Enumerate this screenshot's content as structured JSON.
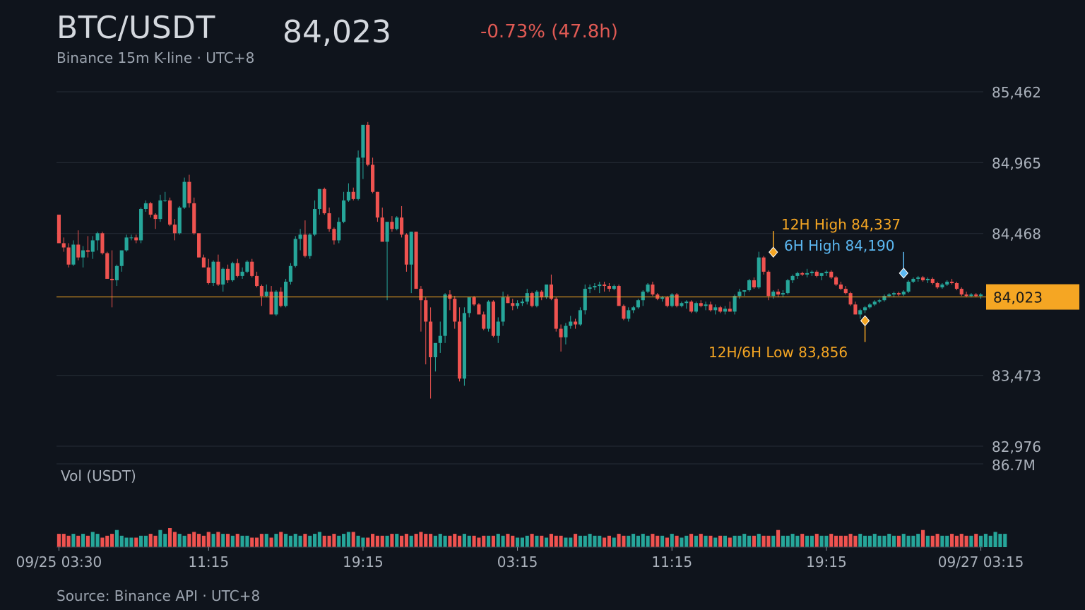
{
  "header": {
    "pair": "BTC/USDT",
    "subtitle": "Binance 15m K-line · UTC+8",
    "price": "84,023",
    "change": "-0.73% (47.8h)"
  },
  "footer": {
    "source": "Source: Binance API · UTC+8"
  },
  "colors": {
    "up": "#26a69a",
    "down": "#ef5350",
    "accent": "#f5a623",
    "six_hour": "#5cb8f2",
    "background": "#0f141c"
  },
  "chart_data": {
    "type": "candlestick",
    "interval": "15m",
    "price_axis": {
      "ticks": [
        "85,462",
        "84,965",
        "84,468",
        "83,473",
        "82,976"
      ],
      "tick_values": [
        85462,
        84965,
        84468,
        83473,
        82976
      ],
      "range": [
        82976,
        85462
      ]
    },
    "last_price": {
      "value": 84023,
      "label": "84,023"
    },
    "volume_axis": {
      "label": "Vol (USDT)",
      "max_label": "86.7M",
      "max": 86.7
    },
    "x_axis": {
      "labels": [
        "09/25 03:30",
        "11:15",
        "19:15",
        "03:15",
        "11:15",
        "19:15",
        "09/27 03:15"
      ],
      "label_bar_index": [
        0,
        31,
        63,
        95,
        127,
        159,
        191
      ]
    },
    "annotations": {
      "high_12h": {
        "text": "12H High 84,337",
        "value": 84337,
        "bar_index": 148
      },
      "high_6h": {
        "text": "6H High 84,190",
        "value": 84190,
        "bar_index": 175
      },
      "low": {
        "text": "12H/6H Low 83,856",
        "value": 83856,
        "bar_index": 167
      }
    },
    "candles_ohlc": [
      [
        84600,
        84600,
        84400,
        84400
      ],
      [
        84400,
        84440,
        84340,
        84370
      ],
      [
        84370,
        84400,
        84230,
        84250
      ],
      [
        84250,
        84420,
        84240,
        84390
      ],
      [
        84390,
        84490,
        84280,
        84300
      ],
      [
        84300,
        84380,
        84230,
        84350
      ],
      [
        84350,
        84450,
        84300,
        84340
      ],
      [
        84340,
        84450,
        84290,
        84420
      ],
      [
        84420,
        84480,
        84350,
        84470
      ],
      [
        84470,
        84480,
        84320,
        84330
      ],
      [
        84330,
        84340,
        84170,
        84150
      ],
      [
        84150,
        84350,
        83950,
        84140
      ],
      [
        84140,
        84250,
        84100,
        84240
      ],
      [
        84240,
        84320,
        84200,
        84350
      ],
      [
        84350,
        84460,
        84340,
        84440
      ],
      [
        84440,
        84460,
        84420,
        84440
      ],
      [
        84440,
        84460,
        84400,
        84420
      ],
      [
        84420,
        84650,
        84400,
        84640
      ],
      [
        84640,
        84700,
        84620,
        84680
      ],
      [
        84680,
        84690,
        84580,
        84600
      ],
      [
        84600,
        84610,
        84500,
        84570
      ],
      [
        84570,
        84740,
        84550,
        84700
      ],
      [
        84700,
        84760,
        84690,
        84700
      ],
      [
        84700,
        84720,
        84520,
        84530
      ],
      [
        84530,
        84570,
        84420,
        84470
      ],
      [
        84470,
        84660,
        84460,
        84650
      ],
      [
        84650,
        84860,
        84640,
        84830
      ],
      [
        84830,
        84880,
        84650,
        84680
      ],
      [
        84680,
        84720,
        84460,
        84470
      ],
      [
        84470,
        84470,
        84300,
        84300
      ],
      [
        84300,
        84320,
        84250,
        84230
      ],
      [
        84230,
        84290,
        84110,
        84120
      ],
      [
        84120,
        84280,
        84100,
        84270
      ],
      [
        84270,
        84320,
        84100,
        84110
      ],
      [
        84110,
        84230,
        84060,
        84220
      ],
      [
        84220,
        84250,
        84120,
        84140
      ],
      [
        84140,
        84270,
        84130,
        84260
      ],
      [
        84260,
        84290,
        84160,
        84170
      ],
      [
        84170,
        84230,
        84150,
        84200
      ],
      [
        84200,
        84280,
        84190,
        84270
      ],
      [
        84270,
        84290,
        84160,
        84170
      ],
      [
        84170,
        84200,
        84090,
        84100
      ],
      [
        84100,
        84110,
        83960,
        84030
      ],
      [
        84030,
        84110,
        84020,
        84060
      ],
      [
        84060,
        84100,
        83900,
        83900
      ],
      [
        83900,
        84070,
        83890,
        84060
      ],
      [
        84060,
        84090,
        83950,
        83960
      ],
      [
        83960,
        84150,
        83950,
        84130
      ],
      [
        84130,
        84260,
        84110,
        84240
      ],
      [
        84240,
        84450,
        84230,
        84430
      ],
      [
        84430,
        84500,
        84350,
        84460
      ],
      [
        84460,
        84560,
        84300,
        84310
      ],
      [
        84310,
        84470,
        84290,
        84460
      ],
      [
        84460,
        84700,
        84450,
        84640
      ],
      [
        84640,
        84780,
        84600,
        84780
      ],
      [
        84780,
        84790,
        84600,
        84610
      ],
      [
        84610,
        84650,
        84480,
        84500
      ],
      [
        84500,
        84510,
        84390,
        84420
      ],
      [
        84420,
        84580,
        84400,
        84550
      ],
      [
        84550,
        84760,
        84540,
        84700
      ],
      [
        84700,
        84820,
        84690,
        84760
      ],
      [
        84760,
        84790,
        84700,
        84710
      ],
      [
        84710,
        85050,
        84700,
        85000
      ],
      [
        85000,
        85220,
        84850,
        85230
      ],
      [
        85230,
        85250,
        84940,
        84950
      ],
      [
        84950,
        85000,
        84750,
        84760
      ],
      [
        84760,
        84760,
        84550,
        84580
      ],
      [
        84580,
        84650,
        84420,
        84410
      ],
      [
        84410,
        84500,
        84000,
        84550
      ],
      [
        84550,
        84590,
        84480,
        84500
      ],
      [
        84500,
        84590,
        84490,
        84580
      ],
      [
        84580,
        84660,
        84440,
        84460
      ],
      [
        84460,
        84470,
        84200,
        84250
      ],
      [
        84250,
        84480,
        84050,
        84480
      ],
      [
        84480,
        84480,
        84080,
        84080
      ],
      [
        84080,
        84100,
        83780,
        84000
      ],
      [
        84000,
        84020,
        83550,
        83850
      ],
      [
        83850,
        83950,
        83310,
        83600
      ],
      [
        83600,
        83660,
        83500,
        83700
      ],
      [
        83700,
        83850,
        83630,
        83750
      ],
      [
        83750,
        84050,
        83700,
        84040
      ],
      [
        84040,
        84070,
        83930,
        84010
      ],
      [
        84010,
        84030,
        83800,
        83850
      ],
      [
        83850,
        83950,
        83430,
        83450
      ],
      [
        83450,
        83950,
        83400,
        83910
      ],
      [
        83910,
        84010,
        83880,
        84020
      ],
      [
        84020,
        84030,
        83960,
        83970
      ],
      [
        83970,
        83980,
        83900,
        83900
      ],
      [
        83900,
        83920,
        83790,
        83800
      ],
      [
        83800,
        84000,
        83780,
        83990
      ],
      [
        83990,
        84000,
        83740,
        83750
      ],
      [
        83750,
        83880,
        83700,
        83850
      ],
      [
        83850,
        84060,
        83820,
        84020
      ],
      [
        84020,
        84040,
        83980,
        83980
      ],
      [
        83980,
        84010,
        83930,
        83960
      ],
      [
        83960,
        84000,
        83940,
        83980
      ],
      [
        83980,
        84010,
        83960,
        83990
      ],
      [
        83990,
        84080,
        83970,
        84050
      ],
      [
        84050,
        84060,
        83950,
        83960
      ],
      [
        83960,
        84070,
        83950,
        84060
      ],
      [
        84060,
        84070,
        84000,
        84020
      ],
      [
        84020,
        84110,
        84010,
        84110
      ],
      [
        84110,
        84180,
        84000,
        84010
      ],
      [
        84010,
        84020,
        83780,
        83800
      ],
      [
        83800,
        83830,
        83640,
        83740
      ],
      [
        83740,
        83840,
        83690,
        83820
      ],
      [
        83820,
        83890,
        83800,
        83850
      ],
      [
        83850,
        83870,
        83800,
        83830
      ],
      [
        83830,
        83950,
        83820,
        83930
      ],
      [
        83930,
        84110,
        83900,
        84080
      ],
      [
        84080,
        84110,
        84050,
        84090
      ],
      [
        84090,
        84120,
        84070,
        84100
      ],
      [
        84100,
        84130,
        84050,
        84110
      ],
      [
        84110,
        84130,
        84060,
        84100
      ],
      [
        84100,
        84120,
        84060,
        84080
      ],
      [
        84080,
        84110,
        84070,
        84100
      ],
      [
        84100,
        84110,
        83960,
        83960
      ],
      [
        83960,
        83970,
        83860,
        83870
      ],
      [
        83870,
        83950,
        83850,
        83930
      ],
      [
        83930,
        83960,
        83910,
        83950
      ],
      [
        83950,
        84010,
        83940,
        84000
      ],
      [
        84000,
        84070,
        83960,
        84060
      ],
      [
        84060,
        84120,
        84050,
        84110
      ],
      [
        84110,
        84130,
        84030,
        84040
      ],
      [
        84040,
        84050,
        84000,
        84010
      ],
      [
        84010,
        84030,
        83990,
        84020
      ],
      [
        84020,
        84030,
        83950,
        83960
      ],
      [
        83960,
        84050,
        83950,
        84040
      ],
      [
        84040,
        84050,
        83950,
        83960
      ],
      [
        83960,
        83990,
        83950,
        83980
      ],
      [
        83980,
        84000,
        83940,
        83990
      ],
      [
        83990,
        84000,
        83910,
        83920
      ],
      [
        83920,
        83990,
        83910,
        83980
      ],
      [
        83980,
        84000,
        83950,
        83960
      ],
      [
        83960,
        83990,
        83930,
        83970
      ],
      [
        83970,
        83990,
        83920,
        83930
      ],
      [
        83930,
        83970,
        83900,
        83950
      ],
      [
        83950,
        83960,
        83910,
        83920
      ],
      [
        83920,
        83960,
        83900,
        83940
      ],
      [
        83940,
        83990,
        83920,
        83920
      ],
      [
        83920,
        84040,
        83900,
        84030
      ],
      [
        84030,
        84080,
        84010,
        84060
      ],
      [
        84060,
        84070,
        84030,
        84070
      ],
      [
        84070,
        84150,
        84060,
        84140
      ],
      [
        84140,
        84160,
        84080,
        84090
      ],
      [
        84090,
        84340,
        84080,
        84300
      ],
      [
        84300,
        84310,
        84180,
        84200
      ],
      [
        84200,
        84210,
        84000,
        84030
      ],
      [
        84030,
        84070,
        84010,
        84060
      ],
      [
        84060,
        84080,
        84020,
        84040
      ],
      [
        84040,
        84070,
        84020,
        84050
      ],
      [
        84050,
        84150,
        84040,
        84140
      ],
      [
        84140,
        84180,
        84120,
        84170
      ],
      [
        84170,
        84200,
        84150,
        84190
      ],
      [
        84190,
        84200,
        84170,
        84180
      ],
      [
        84180,
        84220,
        84160,
        84190
      ],
      [
        84190,
        84210,
        84170,
        84200
      ],
      [
        84200,
        84210,
        84160,
        84170
      ],
      [
        84170,
        84190,
        84140,
        84190
      ],
      [
        84190,
        84210,
        84170,
        84200
      ],
      [
        84200,
        84210,
        84150,
        84160
      ],
      [
        84160,
        84170,
        84100,
        84110
      ],
      [
        84110,
        84130,
        84070,
        84080
      ],
      [
        84080,
        84100,
        84040,
        84050
      ],
      [
        84050,
        84060,
        83960,
        83970
      ],
      [
        83970,
        83990,
        83900,
        83900
      ],
      [
        83900,
        83940,
        83870,
        83930
      ],
      [
        83930,
        83960,
        83910,
        83950
      ],
      [
        83950,
        83980,
        83940,
        83970
      ],
      [
        83970,
        84000,
        83960,
        83990
      ],
      [
        83990,
        84010,
        83980,
        84000
      ],
      [
        84000,
        84040,
        83990,
        84030
      ],
      [
        84030,
        84050,
        84020,
        84040
      ],
      [
        84040,
        84060,
        84020,
        84050
      ],
      [
        84050,
        84060,
        84030,
        84040
      ],
      [
        84040,
        84070,
        84030,
        84060
      ],
      [
        84060,
        84140,
        84050,
        84130
      ],
      [
        84130,
        84160,
        84120,
        84150
      ],
      [
        84150,
        84170,
        84130,
        84160
      ],
      [
        84160,
        84170,
        84130,
        84140
      ],
      [
        84140,
        84160,
        84120,
        84150
      ],
      [
        84150,
        84160,
        84110,
        84120
      ],
      [
        84120,
        84130,
        84080,
        84090
      ],
      [
        84090,
        84120,
        84080,
        84110
      ],
      [
        84110,
        84140,
        84100,
        84130
      ],
      [
        84130,
        84150,
        84110,
        84120
      ],
      [
        84120,
        84130,
        84070,
        84080
      ],
      [
        84080,
        84090,
        84030,
        84040
      ],
      [
        84040,
        84060,
        84020,
        84030
      ],
      [
        84030,
        84050,
        84020,
        84040
      ],
      [
        84040,
        84050,
        84020,
        84030
      ],
      [
        84030,
        84050,
        84010,
        84040
      ]
    ],
    "volume_millions": [
      14,
      14,
      12,
      14,
      12,
      14,
      12,
      16,
      14,
      10,
      12,
      14,
      18,
      12,
      10,
      10,
      10,
      12,
      12,
      14,
      12,
      18,
      14,
      20,
      16,
      14,
      12,
      14,
      16,
      14,
      12,
      16,
      14,
      16,
      14,
      14,
      12,
      14,
      12,
      12,
      10,
      10,
      14,
      14,
      10,
      14,
      16,
      14,
      12,
      14,
      12,
      14,
      12,
      14,
      16,
      12,
      12,
      14,
      12,
      14,
      16,
      16,
      12,
      10,
      10,
      14,
      12,
      12,
      12,
      14,
      14,
      12,
      14,
      12,
      14,
      16,
      14,
      14,
      12,
      14,
      12,
      12,
      14,
      12,
      14,
      12,
      12,
      10,
      12,
      12,
      12,
      14,
      12,
      14,
      12,
      10,
      10,
      12,
      14,
      12,
      12,
      10,
      14,
      12,
      12,
      10,
      10,
      14,
      12,
      12,
      14,
      12,
      12,
      10,
      12,
      10,
      14,
      12,
      12,
      14,
      12,
      14,
      12,
      14,
      12,
      12,
      10,
      14,
      12,
      10,
      12,
      14,
      12,
      14,
      12,
      12,
      10,
      12,
      12,
      10,
      12,
      12,
      14,
      12,
      12,
      14,
      12,
      12,
      12,
      18,
      12,
      12,
      14,
      12,
      14,
      12,
      12,
      14,
      12,
      12,
      14,
      12,
      12,
      12,
      14,
      12,
      14,
      12,
      12,
      14,
      12,
      12,
      14,
      12,
      12,
      14,
      12,
      12,
      14,
      18,
      12,
      12,
      14,
      12,
      12,
      14,
      12,
      14,
      12,
      12,
      14,
      12,
      14,
      12,
      16,
      14,
      14
    ]
  }
}
